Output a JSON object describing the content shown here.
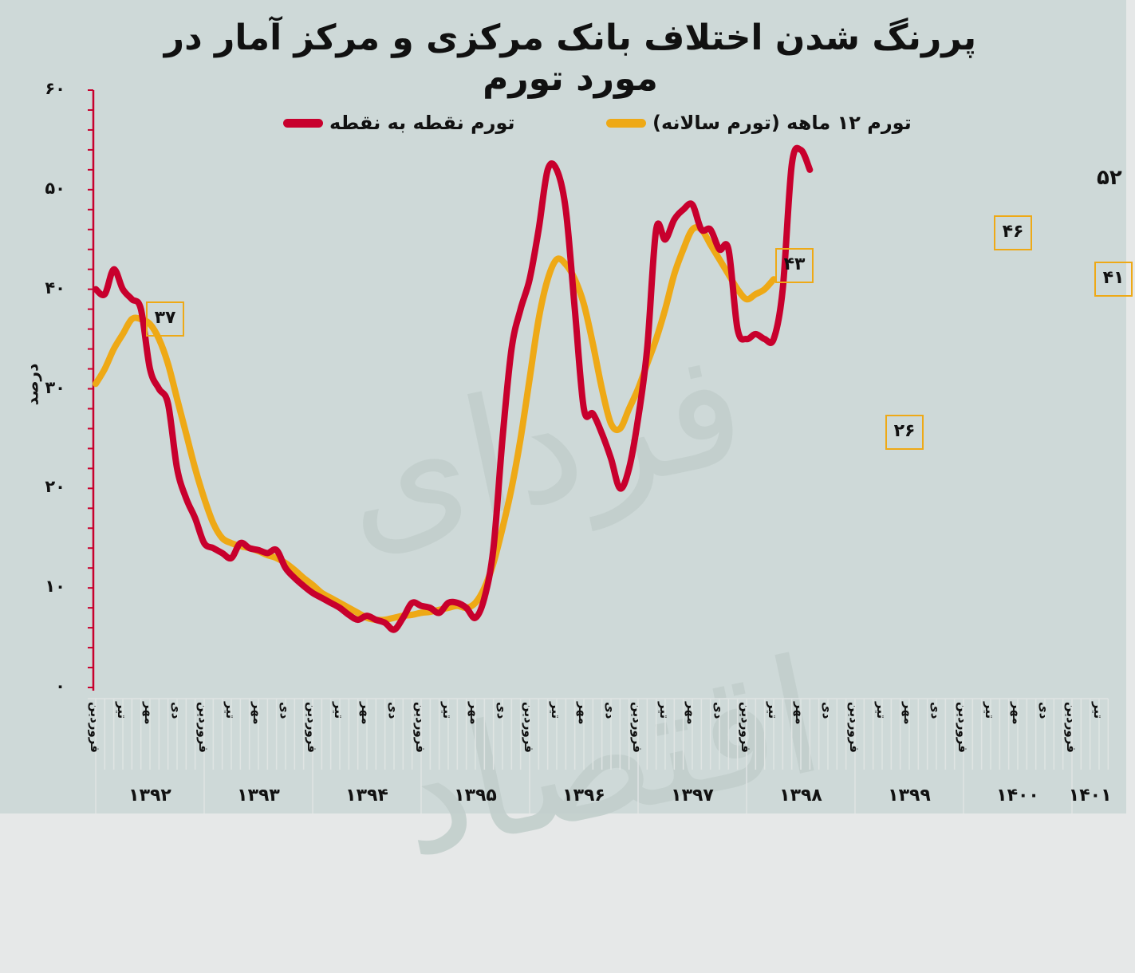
{
  "title": "پررنگ شدن اختلاف بانک مرکزی و مرکز آمار در مورد تورم",
  "legend": {
    "point_to_point": "تورم نقطه به نقطه",
    "annual": "تورم ۱۲ ماهه (تورم سالانه)"
  },
  "colors": {
    "point_to_point": "#c8002d",
    "annual": "#eea916",
    "background": "#ced9d8",
    "axis": "#c8002d",
    "grid": "#dfe4e3",
    "watermark": "#c2cfcc"
  },
  "watermark": "فردای اقتصاد",
  "yaxis": {
    "title": "درصد",
    "ticks": [
      "۰",
      "۱۰",
      "۲۰",
      "۳۰",
      "۴۰",
      "۵۰",
      "۶۰"
    ],
    "min": 0,
    "max": 60
  },
  "xaxis": {
    "month_labels": [
      "فروردین",
      "تیر",
      "مهر",
      "دی"
    ],
    "years": [
      "۱۳۹۲",
      "۱۳۹۳",
      "۱۳۹۴",
      "۱۳۹۵",
      "۱۳۹۶",
      "۱۳۹۷",
      "۱۳۹۸",
      "۱۳۹۹",
      "۱۴۰۰",
      "۱۴۰۱"
    ]
  },
  "annotations": [
    {
      "series": "annual",
      "text": "۳۷",
      "boxed": true
    },
    {
      "series": "annual",
      "text": "۴۳",
      "boxed": true
    },
    {
      "series": "annual",
      "text": "۲۶",
      "boxed": true
    },
    {
      "series": "annual",
      "text": "۴۶",
      "boxed": true
    },
    {
      "series": "annual",
      "text": "۴۱",
      "boxed": true
    },
    {
      "series": "point_to_point",
      "text": "۵۲",
      "boxed": false
    }
  ],
  "chart_data": {
    "type": "line",
    "title": "پررنگ شدن اختلاف بانک مرکزی و مرکز آمار در مورد تورم",
    "xlabel": "",
    "ylabel": "درصد",
    "ylim": [
      0,
      60
    ],
    "legend_position": "top",
    "grid": false,
    "x_start": "فروردین ۱۳۹۲",
    "x_end": "تیر ۱۴۰۱",
    "x_frequency": "monthly",
    "categories_years": [
      "1392",
      "1393",
      "1394",
      "1395",
      "1396",
      "1397",
      "1398",
      "1399",
      "1400",
      "1401"
    ],
    "series": [
      {
        "name": "تورم نقطه به نقطه",
        "values": [
          40,
          39.5,
          42,
          40,
          39,
          38,
          32,
          30,
          28.5,
          22,
          19,
          17,
          14.5,
          14,
          13.5,
          13,
          14.5,
          14,
          13.8,
          13.5,
          13.8,
          12,
          11,
          10.2,
          9.5,
          9,
          8.5,
          8,
          7.3,
          6.8,
          7.2,
          6.8,
          6.5,
          5.8,
          7,
          8.5,
          8.2,
          8,
          7.5,
          8.5,
          8.5,
          8,
          7,
          9,
          14,
          25,
          34,
          38,
          41,
          46,
          52,
          52,
          48,
          38,
          28,
          27.5,
          25.5,
          23,
          20,
          22,
          27,
          34,
          46,
          45,
          47,
          48,
          48.5,
          46,
          46,
          44,
          44,
          36,
          35,
          35.5,
          35,
          35,
          40,
          52.5,
          54,
          52
        ],
        "final_label": 52
      },
      {
        "name": "تورم ۱۲ ماهه (تورم سالانه)",
        "values": [
          30.5,
          32,
          34,
          35.5,
          37,
          37,
          36.5,
          35,
          32.5,
          29,
          25.5,
          22,
          19,
          16.5,
          15,
          14.5,
          14.2,
          14,
          13.7,
          13.3,
          13,
          12.5,
          11.8,
          11,
          10.3,
          9.5,
          9,
          8.5,
          8,
          7.5,
          7,
          6.8,
          6.8,
          7,
          7.2,
          7.3,
          7.5,
          7.6,
          7.8,
          8,
          8.2,
          8,
          8.5,
          10,
          12.5,
          16,
          20,
          25,
          31,
          37,
          41,
          43,
          42.5,
          41,
          38.5,
          34.5,
          30,
          26.5,
          26,
          28,
          30,
          32.5,
          35,
          38,
          41.5,
          44,
          46,
          46,
          44.5,
          43,
          41.5,
          40,
          39,
          39.5,
          40,
          41
        ],
        "labeled_points": [
          37,
          43,
          26,
          46,
          41
        ]
      }
    ]
  }
}
